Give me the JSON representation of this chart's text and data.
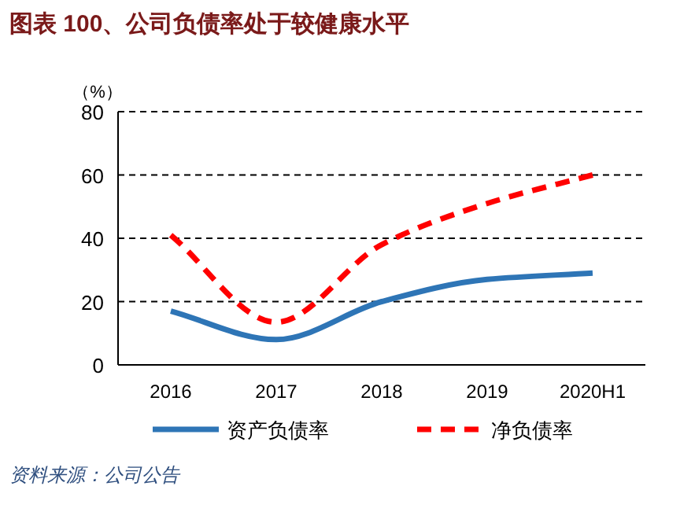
{
  "chart_data": {
    "type": "line",
    "title": "图表 100、公司负债率处于较健康水平",
    "ylabel": "（%）",
    "categories": [
      "2016",
      "2017",
      "2018",
      "2019",
      "2020H1"
    ],
    "series": [
      {
        "name": "资产负债率",
        "color": "#2e75b6",
        "line_style": "solid",
        "values": [
          17,
          8,
          20,
          27,
          29
        ]
      },
      {
        "name": "净负债率",
        "color": "#ff0000",
        "line_style": "dashed",
        "values": [
          41,
          13.5,
          38,
          51,
          60
        ]
      }
    ],
    "ylim": [
      0,
      80
    ],
    "yticks": [
      0,
      20,
      40,
      60,
      80
    ],
    "grid": "y",
    "legend": "bottom",
    "marker": "none",
    "annotations": [
      "资料来源：公司公告"
    ]
  }
}
